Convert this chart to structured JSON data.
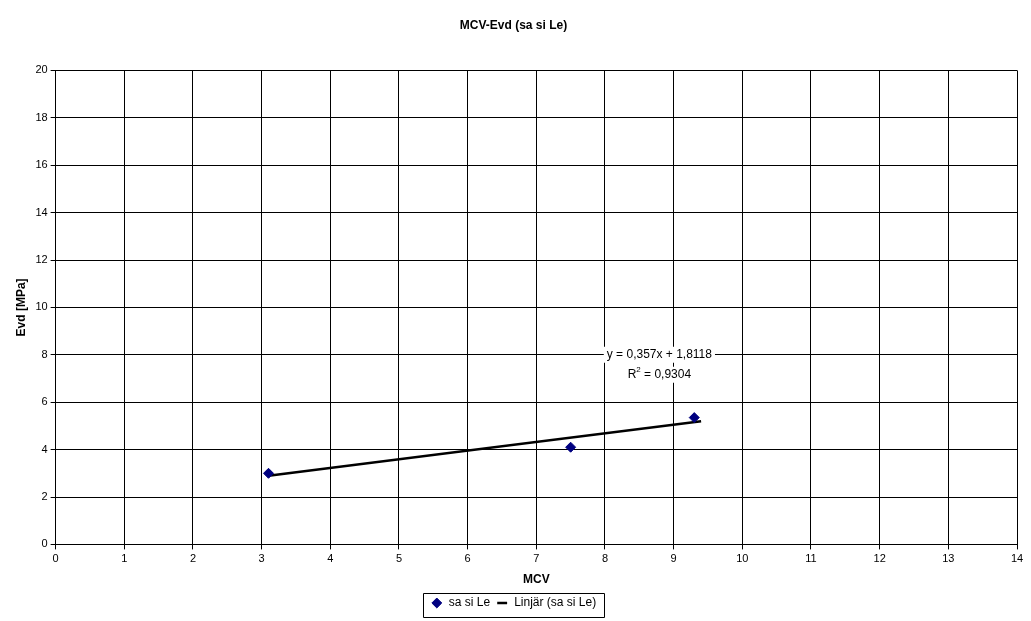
{
  "chart_data": {
    "type": "scatter",
    "title": "MCV-Evd (sa si Le)",
    "xlabel": "MCV",
    "ylabel": "Evd [MPa]",
    "annotations": [
      "y = 0,357x + 1,8118",
      "R$^{2}$ = 0,9304"
    ],
    "series": [
      {
        "name": "sa si Le",
        "color": "#000080",
        "marker": "diamond",
        "x": [
          3.1,
          7.5,
          9.3
        ],
        "values": [
          3.0,
          4.1,
          5.35
        ]
      },
      {
        "name": "Linjär (sa si Le)",
        "type": "line",
        "color": "#000000",
        "marker": "none",
        "x": [
          3.1,
          9.4
        ],
        "values": [
          2.9,
          5.2
        ]
      }
    ],
    "line_style": "solid",
    "xlim": [
      0,
      14
    ],
    "xticks": [
      0,
      1,
      2,
      3,
      4,
      5,
      6,
      7,
      8,
      9,
      10,
      11,
      12,
      13,
      14
    ],
    "ylim": [
      0,
      20
    ],
    "yticks": [
      0,
      2,
      4,
      6,
      8,
      10,
      12,
      14,
      16,
      18,
      20
    ],
    "grid": true,
    "legend": "bottom"
  }
}
